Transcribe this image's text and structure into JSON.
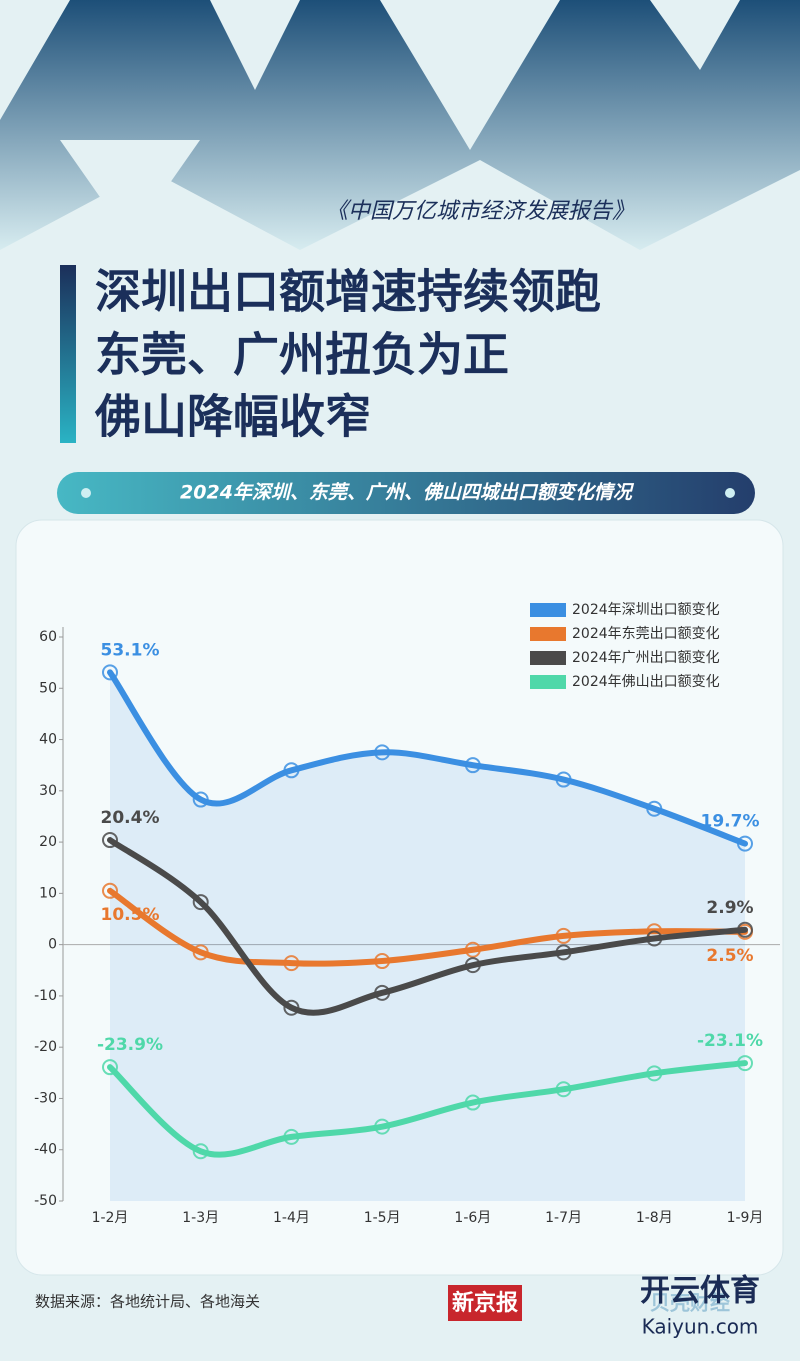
{
  "header": {
    "series_title": "《中国万亿城市经济发展报告》",
    "title_lines": [
      "深圳出口额增速持续领跑",
      "东莞、广州扭负为正",
      "佛山降幅收窄"
    ],
    "banner": "2024年深圳、东莞、广州、佛山四城出口额变化情况"
  },
  "chart_data": {
    "type": "line",
    "categories": [
      "1-2月",
      "1-3月",
      "1-4月",
      "1-5月",
      "1-6月",
      "1-7月",
      "1-8月",
      "1-9月"
    ],
    "series": [
      {
        "name": "2024年深圳出口额变化",
        "color": "#3b8fe2",
        "values": [
          53.1,
          28.3,
          34,
          37.5,
          35,
          32.2,
          26.5,
          19.7
        ],
        "value_labels": [
          "53.1%",
          null,
          null,
          null,
          null,
          null,
          null,
          "19.7%"
        ]
      },
      {
        "name": "2024年东莞出口额变化",
        "color": "#e8782e",
        "values": [
          10.5,
          -1.5,
          -3.6,
          -3.2,
          -1,
          1.7,
          2.6,
          2.5
        ],
        "value_labels": [
          "10.5%",
          null,
          null,
          null,
          null,
          null,
          null,
          "2.5%"
        ]
      },
      {
        "name": "2024年广州出口额变化",
        "color": "#4a4a4a",
        "values": [
          20.4,
          8.3,
          -12.3,
          -9.4,
          -4,
          -1.5,
          1.2,
          2.9
        ],
        "value_labels": [
          "20.4%",
          null,
          null,
          null,
          null,
          null,
          null,
          "2.9%"
        ]
      },
      {
        "name": "2024年佛山出口额变化",
        "color": "#4fd8a9",
        "values": [
          -23.9,
          -40.3,
          -37.5,
          -35.5,
          -30.8,
          -28.2,
          -25.1,
          -23.1
        ],
        "value_labels": [
          "-23.9%",
          null,
          null,
          null,
          null,
          null,
          null,
          "-23.1%"
        ]
      }
    ],
    "ylim": [
      -50,
      60
    ],
    "yticks": [
      -50,
      -40,
      -30,
      -20,
      -10,
      0,
      10,
      20,
      30,
      40,
      50,
      60
    ],
    "legend": "upper right"
  },
  "footer": {
    "source": "数据来源：各地统计局、各地海关",
    "logo": "新京报",
    "brand": "贝壳财经",
    "watermark": "开云体育",
    "url": "Kaiyun.com"
  }
}
